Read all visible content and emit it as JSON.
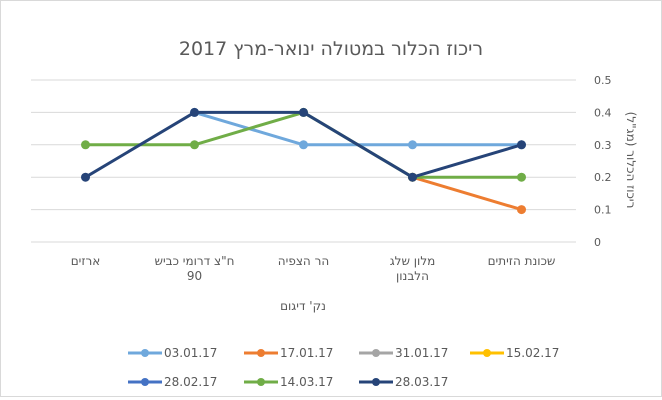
{
  "chart_data": {
    "type": "line",
    "title": "ריכוז הכלור במטולה ינואר-מרץ 2017",
    "xlabel": "נק' דיגום",
    "ylabel": "ריכוז הכלור (מג\"ל)",
    "categories": [
      "שכונת הזיתים",
      "מלון שלג הלבנון",
      "הר הצפיה",
      "ח\"צ דרומי כביש 90",
      "ארזים"
    ],
    "ylim": [
      0,
      0.5
    ],
    "yticks": [
      "0",
      "0.1",
      "0.2",
      "0.3",
      "0.4",
      "0.5"
    ],
    "y_axis_side": "right",
    "category_order": "right-to-left",
    "grid": true,
    "legend_position": "bottom",
    "series": [
      {
        "name": "03.01.17",
        "color": "#6fa8dc",
        "values": [
          0.3,
          0.3,
          0.3,
          0.4,
          null
        ]
      },
      {
        "name": "17.01.17",
        "color": "#ed7d31",
        "values": [
          0.1,
          0.2,
          null,
          null,
          null
        ]
      },
      {
        "name": "31.01.17",
        "color": "#a5a5a5",
        "values": [
          null,
          null,
          null,
          null,
          null
        ]
      },
      {
        "name": "15.02.17",
        "color": "#ffc000",
        "values": [
          null,
          null,
          null,
          null,
          null
        ]
      },
      {
        "name": "28.02.17",
        "color": "#4472c4",
        "values": [
          null,
          null,
          null,
          null,
          null
        ]
      },
      {
        "name": "14.03.17",
        "color": "#70ad47",
        "values": [
          0.2,
          0.2,
          0.4,
          0.3,
          0.3
        ]
      },
      {
        "name": "28.03.17",
        "color": "#264478",
        "values": [
          0.3,
          0.2,
          0.4,
          0.4,
          0.2
        ]
      }
    ]
  }
}
